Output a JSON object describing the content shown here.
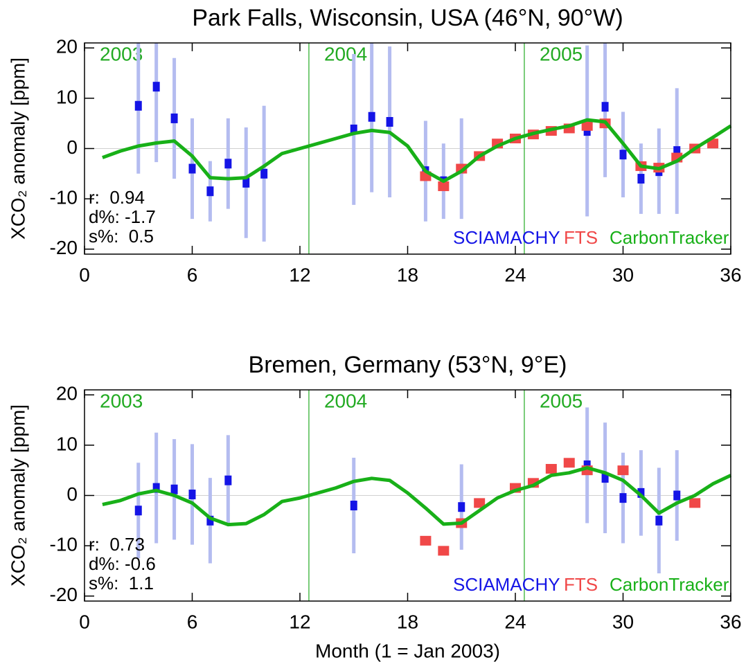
{
  "chart_data": [
    {
      "type": "line",
      "title": "Park Falls, Wisconsin, USA (46°N, 90°W)",
      "ylabel": "XCO₂ anomaly [ppm]",
      "xlim": [
        0,
        36
      ],
      "xticks": [
        0,
        6,
        12,
        18,
        24,
        30,
        36
      ],
      "ylim": [
        -21,
        21
      ],
      "yticks": [
        -20,
        -10,
        0,
        10,
        20
      ],
      "zero_line": true,
      "year_lines": [
        12.5,
        24.5
      ],
      "year_labels": [
        "2003",
        "2004",
        "2005"
      ],
      "year_color": "#22aa22",
      "stats": [
        "r:  0.94",
        "d%: -1.7",
        "s%:  0.5"
      ],
      "series": [
        {
          "name": "SCIAMACHY",
          "color": "#1414e6",
          "error_color": "#b4bcf0",
          "x": [
            3,
            4,
            5,
            6,
            7,
            8,
            9,
            10,
            15,
            16,
            17,
            19,
            20,
            21,
            28,
            29,
            30,
            31,
            32,
            33
          ],
          "values": [
            8.5,
            12.3,
            6,
            -4,
            -8.5,
            -3,
            -6.8,
            -5,
            3.8,
            6.3,
            5.3,
            -4.5,
            -6.5,
            -4,
            3.5,
            8.3,
            -1.2,
            -6,
            -4.5,
            -0.5
          ],
          "errors": [
            13.5,
            15,
            12,
            10,
            6,
            9,
            11,
            13.5,
            15,
            15,
            15,
            10,
            7.5,
            10,
            17,
            14,
            8.5,
            7,
            8.5,
            12.5
          ]
        },
        {
          "name": "FTS",
          "color": "#f04848",
          "x": [
            19,
            20,
            21,
            22,
            23,
            24,
            25,
            26,
            27,
            28,
            29,
            31,
            32,
            33,
            34,
            35
          ],
          "values": [
            -5.5,
            -7.5,
            -4,
            -1.5,
            1,
            2,
            2.8,
            3.5,
            4,
            4.5,
            5,
            -3.5,
            -3.8,
            -1.8,
            0,
            1
          ]
        },
        {
          "name": "CarbonTracker",
          "color": "#18b018",
          "x": [
            1,
            2,
            3,
            4,
            5,
            6,
            7,
            8,
            9,
            10,
            11,
            12,
            13,
            14,
            15,
            16,
            17,
            18,
            19,
            20,
            21,
            22,
            23,
            24,
            25,
            26,
            27,
            28,
            29,
            30,
            31,
            32,
            33,
            34,
            35,
            36
          ],
          "values": [
            -1.8,
            -0.5,
            0.5,
            1.1,
            1.5,
            -1.5,
            -5.8,
            -6,
            -5.8,
            -3.5,
            -1,
            0,
            1,
            2,
            3,
            3.6,
            3.2,
            0.5,
            -4.5,
            -6.5,
            -4.5,
            -1.5,
            0.5,
            2,
            3,
            3.8,
            4.5,
            5.7,
            5.3,
            1,
            -3.5,
            -4,
            -2.5,
            0,
            2.2,
            4.5
          ]
        }
      ]
    },
    {
      "type": "line",
      "title": "Bremen, Germany (53°N, 9°E)",
      "ylabel": "XCO₂ anomaly [ppm]",
      "xlabel": "Month (1 = Jan 2003)",
      "xlim": [
        0,
        36
      ],
      "xticks": [
        0,
        6,
        12,
        18,
        24,
        30,
        36
      ],
      "ylim": [
        -21,
        21
      ],
      "yticks": [
        -20,
        -10,
        0,
        10,
        20
      ],
      "zero_line": true,
      "year_lines": [
        12.5,
        24.5
      ],
      "year_labels": [
        "2003",
        "2004",
        "2005"
      ],
      "year_color": "#22aa22",
      "stats": [
        "r:  0.73",
        "d%: -0.6",
        "s%:  1.1"
      ],
      "series": [
        {
          "name": "SCIAMACHY",
          "color": "#1414e6",
          "error_color": "#b4bcf0",
          "x": [
            3,
            4,
            5,
            6,
            7,
            8,
            15,
            21,
            28,
            29,
            30,
            31,
            32,
            33
          ],
          "values": [
            -3,
            1.5,
            1.2,
            0.2,
            -5,
            3,
            -2,
            -2.3,
            6,
            3.5,
            -0.5,
            0.5,
            -5,
            0
          ],
          "errors": [
            9.5,
            11,
            10,
            10,
            8.5,
            9,
            9.5,
            8.5,
            11.5,
            11,
            9,
            8.5,
            10.5,
            9
          ]
        },
        {
          "name": "FTS",
          "color": "#f04848",
          "x": [
            19,
            20,
            21,
            22,
            24,
            25,
            26,
            27,
            28,
            30,
            34
          ],
          "values": [
            -9,
            -11,
            -5.5,
            -1.5,
            1.5,
            2.5,
            5.3,
            6.5,
            5,
            5,
            -1.5
          ]
        },
        {
          "name": "CarbonTracker",
          "color": "#18b018",
          "x": [
            1,
            2,
            3,
            4,
            5,
            6,
            7,
            8,
            9,
            10,
            11,
            12,
            13,
            14,
            15,
            16,
            17,
            18,
            19,
            20,
            21,
            22,
            23,
            24,
            25,
            26,
            27,
            28,
            29,
            30,
            31,
            32,
            33,
            34,
            35,
            36
          ],
          "values": [
            -1.8,
            -1,
            0.3,
            1,
            0,
            -1.5,
            -4.5,
            -5.8,
            -5.6,
            -3.8,
            -1.2,
            -0.5,
            0.5,
            1.5,
            2.8,
            3.4,
            3,
            0.5,
            -2.5,
            -5.7,
            -5.5,
            -3,
            -0.5,
            1,
            2,
            4,
            4.5,
            5.5,
            4.5,
            3,
            0,
            -3.5,
            -1.5,
            0,
            2.3,
            4
          ]
        }
      ]
    }
  ]
}
